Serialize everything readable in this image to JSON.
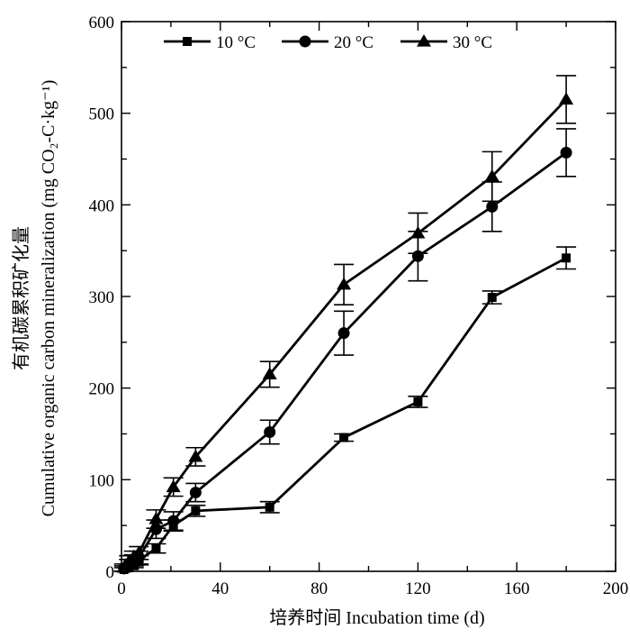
{
  "chart_data": {
    "type": "line",
    "x_unit_label": "培养时间 Incubation time (d)",
    "y_unit_label_cn": "有机碳累积矿化量",
    "y_unit_label_en": "Cumulative organic carbon mineralization (mg CO₂-C·kg⁻¹)",
    "xlim": [
      0,
      200
    ],
    "ylim": [
      0,
      600
    ],
    "x_ticks": [
      "0",
      "40",
      "80",
      "120",
      "160",
      "200"
    ],
    "y_ticks": [
      "0",
      "100",
      "200",
      "300",
      "400",
      "500",
      "600"
    ],
    "grid": false,
    "legend_position": "top",
    "series": [
      {
        "name": "10 °C",
        "marker": "square",
        "x": [
          1,
          3,
          5,
          7,
          14,
          21,
          30,
          60,
          90,
          120,
          150,
          180
        ],
        "y": [
          2,
          5,
          8,
          12,
          25,
          50,
          66,
          70,
          146,
          185,
          299,
          342
        ],
        "err": [
          2,
          3,
          4,
          5,
          5,
          6,
          6,
          6,
          4,
          6,
          7,
          12
        ]
      },
      {
        "name": "20 °C",
        "marker": "circle",
        "x": [
          1,
          3,
          5,
          7,
          14,
          21,
          30,
          60,
          90,
          120,
          150,
          180
        ],
        "y": [
          3,
          8,
          12,
          15,
          46,
          55,
          86,
          152,
          260,
          344,
          398,
          457
        ],
        "err": [
          3,
          5,
          6,
          7,
          10,
          10,
          10,
          13,
          24,
          27,
          27,
          26
        ]
      },
      {
        "name": "30 °C",
        "marker": "triangle",
        "x": [
          1,
          3,
          5,
          7,
          14,
          21,
          30,
          60,
          90,
          120,
          150,
          180
        ],
        "y": [
          4,
          11,
          16,
          20,
          57,
          92,
          125,
          215,
          313,
          369,
          431,
          515
        ],
        "err": [
          4,
          6,
          6,
          7,
          10,
          10,
          10,
          14,
          22,
          22,
          27,
          26
        ]
      }
    ]
  }
}
